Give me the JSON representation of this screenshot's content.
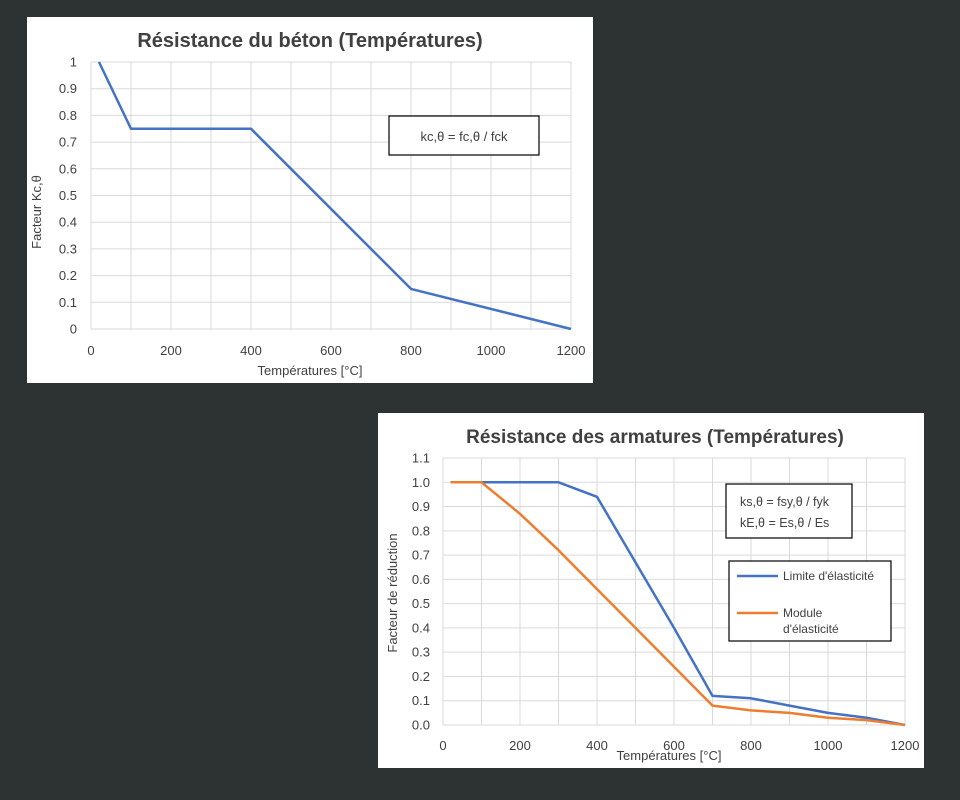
{
  "chart_data": [
    {
      "type": "line",
      "title": "Résistance du béton (Températures)",
      "xlabel": "Températures [°C]",
      "ylabel": "Facteur Kc,θ",
      "xlim": [
        0,
        1200
      ],
      "ylim": [
        0,
        1
      ],
      "x_ticks": [
        "0",
        "200",
        "400",
        "600",
        "800",
        "1000",
        "1200"
      ],
      "y_ticks": [
        "0",
        "0.1",
        "0.2",
        "0.3",
        "0.4",
        "0.5",
        "0.6",
        "0.7",
        "0.8",
        "0.9",
        "1"
      ],
      "grid": true,
      "annotation": "kc,θ = fc,θ / fck",
      "series": [
        {
          "name": "kc,θ",
          "color": "#4472c4",
          "x": [
            20,
            100,
            400,
            800,
            1200
          ],
          "y": [
            1.0,
            0.75,
            0.75,
            0.15,
            0.0
          ]
        }
      ]
    },
    {
      "type": "line",
      "title": "Résistance des armatures (Températures)",
      "xlabel": "Températures [°C]",
      "ylabel": "Facteur de réduction",
      "xlim": [
        0,
        1200
      ],
      "ylim": [
        0,
        1.1
      ],
      "x_ticks": [
        "0",
        "200",
        "400",
        "600",
        "800",
        "1000",
        "1200"
      ],
      "y_ticks": [
        "0.0",
        "0.1",
        "0.2",
        "0.3",
        "0.4",
        "0.5",
        "0.6",
        "0.7",
        "0.8",
        "0.9",
        "1.0",
        "1.1"
      ],
      "grid": true,
      "annotation_lines": [
        "ks,θ = fsy,θ / fyk",
        "kE,θ = Es,θ / Es"
      ],
      "legend_position": "right",
      "series": [
        {
          "name": "Limite d'élasticité",
          "color": "#4472c4",
          "x": [
            20,
            100,
            200,
            300,
            400,
            500,
            600,
            700,
            800,
            900,
            1000,
            1100,
            1200
          ],
          "y": [
            1.0,
            1.0,
            1.0,
            1.0,
            0.94,
            0.67,
            0.4,
            0.12,
            0.11,
            0.08,
            0.05,
            0.03,
            0.0
          ]
        },
        {
          "name": "Module d'élasticité",
          "legend_lines": [
            "Module",
            "d'élasticité"
          ],
          "color": "#ed7d31",
          "x": [
            20,
            100,
            200,
            300,
            400,
            500,
            600,
            700,
            800,
            900,
            1000,
            1100,
            1200
          ],
          "y": [
            1.0,
            1.0,
            0.87,
            0.72,
            0.56,
            0.4,
            0.24,
            0.08,
            0.06,
            0.05,
            0.03,
            0.02,
            0.0
          ]
        }
      ]
    }
  ]
}
